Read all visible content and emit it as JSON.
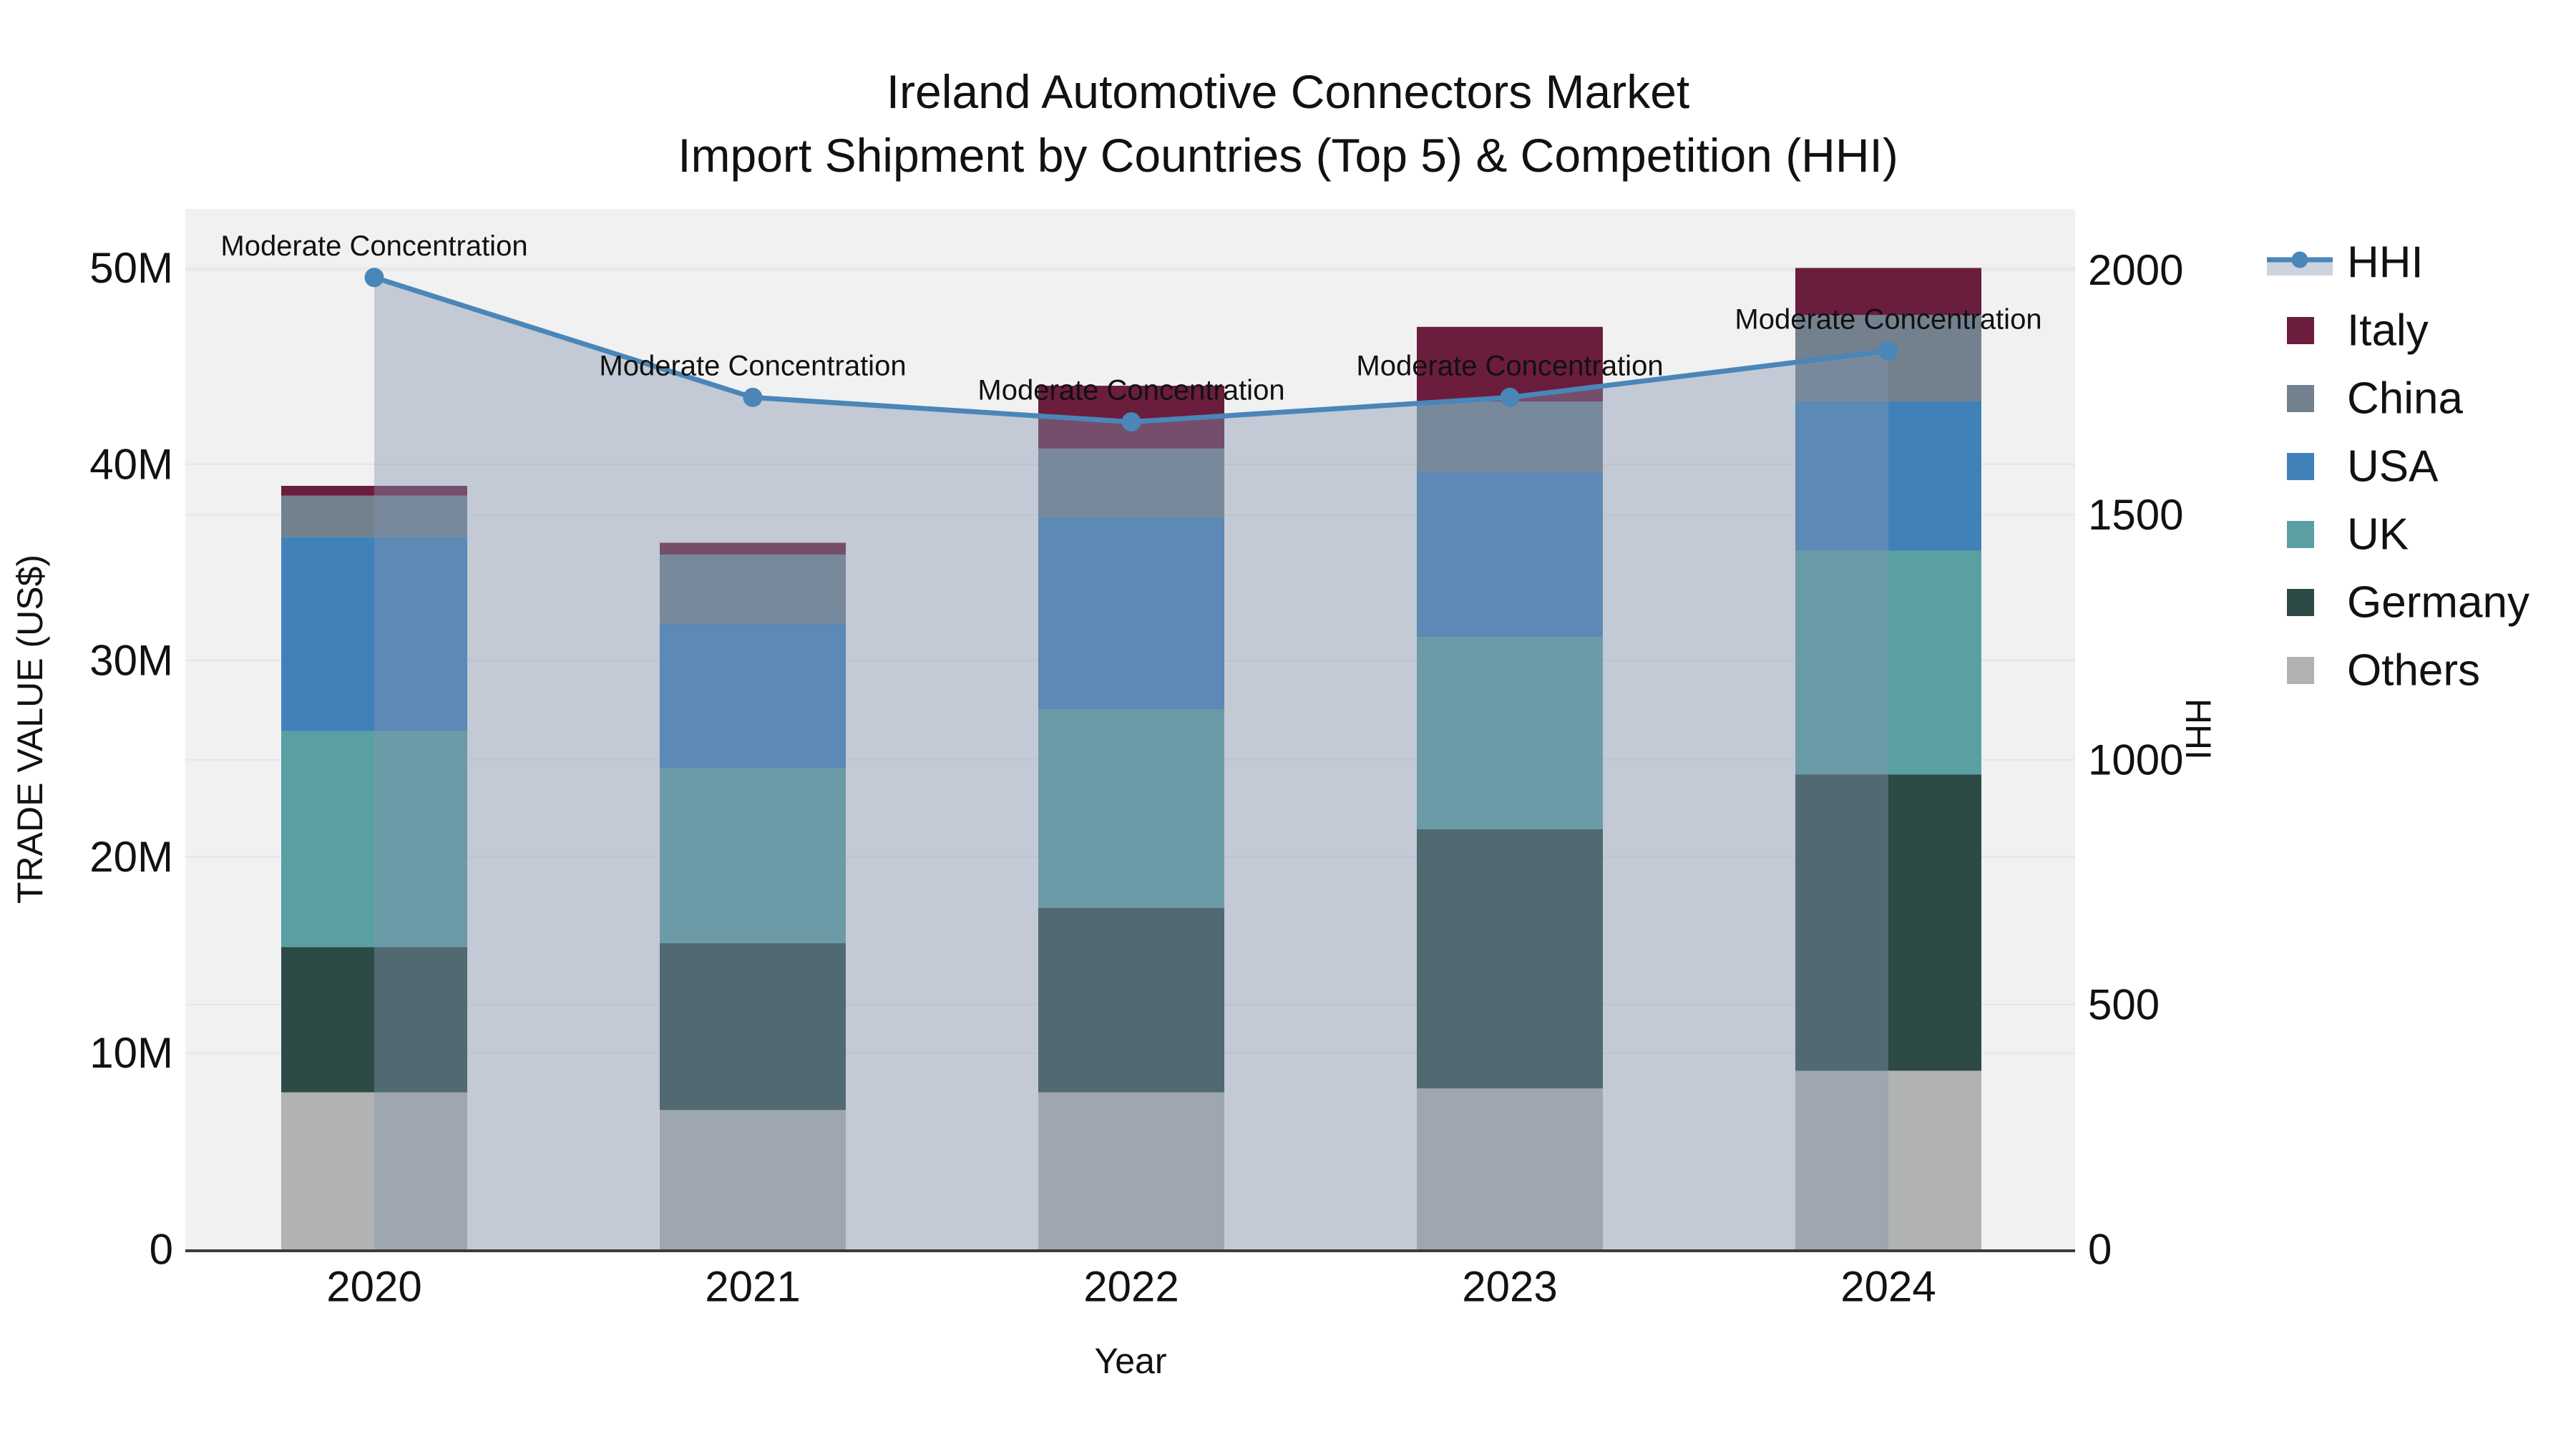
{
  "title": {
    "line1": "Ireland Automotive Connectors Market",
    "line2": "Import Shipment by Countries (Top 5) & Competition (HHI)"
  },
  "chart_data": {
    "type": "combo-stacked-bar-with-line",
    "categories": [
      "2020",
      "2021",
      "2022",
      "2023",
      "2024"
    ],
    "bar_unit": "US$ millions",
    "series": [
      {
        "name": "Others",
        "color": "#b1b3b2",
        "values": [
          8.0,
          7.1,
          8.0,
          8.2,
          9.1
        ]
      },
      {
        "name": "Germany",
        "color": "#2d4a46",
        "values": [
          7.4,
          8.5,
          9.4,
          13.2,
          15.1
        ]
      },
      {
        "name": "UK",
        "color": "#5aa0a2",
        "values": [
          11.0,
          8.9,
          10.1,
          9.8,
          11.4
        ]
      },
      {
        "name": "USA",
        "color": "#4181ba",
        "values": [
          9.9,
          7.4,
          9.8,
          8.4,
          7.6
        ]
      },
      {
        "name": "China",
        "color": "#73818f",
        "values": [
          2.1,
          3.5,
          3.5,
          3.6,
          4.4
        ]
      },
      {
        "name": "Italy",
        "color": "#6b1d3d",
        "values": [
          0.5,
          0.6,
          3.2,
          3.8,
          2.4
        ]
      }
    ],
    "totals_million": [
      38.9,
      36.0,
      44.0,
      47.0,
      50.0
    ],
    "line_series": {
      "name": "HHI",
      "axis": "right",
      "color": "#4a86b8",
      "area_fill": "rgba(130,148,173,0.42)",
      "values": [
        1985,
        1740,
        1690,
        1740,
        1835
      ]
    },
    "annotations": [
      {
        "x": "2020",
        "text": "Moderate Concentration"
      },
      {
        "x": "2021",
        "text": "Moderate Concentration"
      },
      {
        "x": "2022",
        "text": "Moderate Concentration"
      },
      {
        "x": "2023",
        "text": "Moderate Concentration"
      },
      {
        "x": "2024",
        "text": "Moderate Concentration"
      }
    ],
    "y_left": {
      "label": "TRADE VALUE (US$)",
      "ticks": [
        "0",
        "10M",
        "20M",
        "30M",
        "40M",
        "50M"
      ],
      "tick_values_million": [
        0,
        10,
        20,
        30,
        40,
        50
      ],
      "range_million": [
        0,
        52.9
      ]
    },
    "y_right": {
      "label": "HHI",
      "ticks": [
        "0",
        "500",
        "1000",
        "1500",
        "2000"
      ],
      "tick_values": [
        0,
        500,
        1000,
        1500,
        2000
      ],
      "range": [
        0,
        2121
      ]
    },
    "x_label": "Year",
    "legend": [
      {
        "label": "HHI",
        "type": "line",
        "color": "#4a86b8"
      },
      {
        "label": "Italy",
        "type": "swatch",
        "color": "#6b1d3d"
      },
      {
        "label": "China",
        "type": "swatch",
        "color": "#73818f"
      },
      {
        "label": "USA",
        "type": "swatch",
        "color": "#4181ba"
      },
      {
        "label": "UK",
        "type": "swatch",
        "color": "#5aa0a2"
      },
      {
        "label": "Germany",
        "type": "swatch",
        "color": "#2d4a46"
      },
      {
        "label": "Others",
        "type": "swatch",
        "color": "#b1b3b2"
      }
    ],
    "grid": true,
    "legend_position": "right",
    "colors": {
      "plot_bg": "#f1f1f2",
      "grid": "#e3e5e8",
      "axis_line": "#3c3c3c",
      "text": "#111111"
    }
  }
}
